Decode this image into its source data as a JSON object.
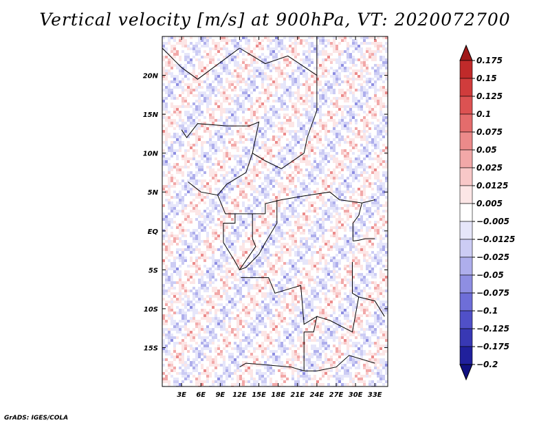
{
  "title": "Vertical velocity [m/s] at 900hPa, VT: 2020072700",
  "credit": "GrADS: IGES/COLA",
  "chart_data": {
    "type": "heatmap",
    "title": "Vertical velocity [m/s] at 900hPa, VT: 2020072700",
    "variable": "Vertical velocity",
    "units": "m/s",
    "level": "900hPa",
    "valid_time": "2020072700",
    "xlim": [
      0,
      35
    ],
    "ylim": [
      -20,
      25
    ],
    "x_ticks": [
      {
        "value": 3,
        "label": "3E"
      },
      {
        "value": 6,
        "label": "6E"
      },
      {
        "value": 9,
        "label": "9E"
      },
      {
        "value": 12,
        "label": "12E"
      },
      {
        "value": 15,
        "label": "15E"
      },
      {
        "value": 18,
        "label": "18E"
      },
      {
        "value": 21,
        "label": "21E"
      },
      {
        "value": 24,
        "label": "24E"
      },
      {
        "value": 27,
        "label": "27E"
      },
      {
        "value": 30,
        "label": "30E"
      },
      {
        "value": 33,
        "label": "33E"
      }
    ],
    "y_ticks": [
      {
        "value": 20,
        "label": "20N"
      },
      {
        "value": 15,
        "label": "15N"
      },
      {
        "value": 10,
        "label": "10N"
      },
      {
        "value": 5,
        "label": "5N"
      },
      {
        "value": 0,
        "label": "EQ"
      },
      {
        "value": -5,
        "label": "5S"
      },
      {
        "value": -10,
        "label": "10S"
      },
      {
        "value": -15,
        "label": "15S"
      }
    ],
    "colorbar": {
      "labels": [
        "0.175",
        "0.15",
        "0.125",
        "0.1",
        "0.075",
        "0.05",
        "0.025",
        "0.0125",
        "0.005",
        "−0.005",
        "−0.0125",
        "−0.025",
        "−0.05",
        "−0.075",
        "−0.1",
        "−0.125",
        "−0.175",
        "−0.2"
      ],
      "colors": [
        "#a01818",
        "#c02a2a",
        "#d03c3c",
        "#dc5252",
        "#e46c6c",
        "#ec8a8a",
        "#f2a8a8",
        "#f8c8c8",
        "#fce6e6",
        "#ffffff",
        "#e6e6fa",
        "#ccccf4",
        "#aeaeec",
        "#8e8ee2",
        "#6e6ed8",
        "#5050c8",
        "#3838b4",
        "#20209c",
        "#101080"
      ],
      "over_color": "#a01818",
      "under_color": "#101080"
    },
    "grid": false
  }
}
